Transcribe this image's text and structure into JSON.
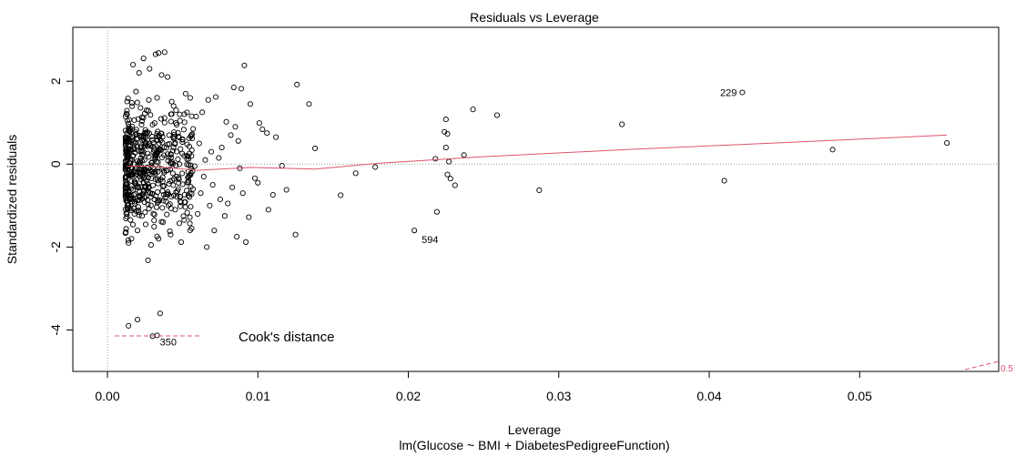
{
  "chart_data": {
    "type": "scatter",
    "title": "Residuals vs Leverage",
    "xlabel": "Leverage",
    "sublabel": "lm(Glucose ~ BMI + DiabetesPedigreeFunction)",
    "ylabel": "Standardized residuals",
    "xlim": [
      0,
      0.057
    ],
    "ylim": [
      -5.0,
      3.3
    ],
    "xticks": [
      "0.00",
      "0.01",
      "0.02",
      "0.03",
      "0.04",
      "0.05"
    ],
    "xtick_values": [
      0,
      0.01,
      0.02,
      0.03,
      0.04,
      0.05
    ],
    "yticks": [
      "-4",
      "-2",
      "0",
      "2"
    ],
    "ytick_values": [
      -4,
      -2,
      0,
      2
    ],
    "labeled_points": [
      {
        "label": "229",
        "x": 0.0422,
        "y": 1.73
      },
      {
        "label": "594",
        "x": 0.0204,
        "y": -1.6
      },
      {
        "label": "350",
        "x": 0.003,
        "y": -4.15
      }
    ],
    "points": [
      [
        0.0558,
        0.51
      ],
      [
        0.0482,
        0.35
      ],
      [
        0.041,
        -0.4
      ],
      [
        0.0422,
        1.73
      ],
      [
        0.0342,
        0.96
      ],
      [
        0.0287,
        -0.63
      ],
      [
        0.0259,
        1.18
      ],
      [
        0.0243,
        1.32
      ],
      [
        0.0237,
        0.22
      ],
      [
        0.0231,
        -0.51
      ],
      [
        0.0228,
        -0.35
      ],
      [
        0.0226,
        -0.25
      ],
      [
        0.0226,
        0.73
      ],
      [
        0.0225,
        0.4
      ],
      [
        0.0224,
        0.78
      ],
      [
        0.0225,
        1.08
      ],
      [
        0.0227,
        0.06
      ],
      [
        0.0219,
        -1.15
      ],
      [
        0.0218,
        0.13
      ],
      [
        0.0204,
        -1.6
      ],
      [
        0.0178,
        -0.07
      ],
      [
        0.0165,
        -0.22
      ],
      [
        0.0155,
        -0.75
      ],
      [
        0.0138,
        0.38
      ],
      [
        0.0134,
        1.45
      ],
      [
        0.0126,
        1.92
      ],
      [
        0.0125,
        -1.7
      ],
      [
        0.0119,
        -0.62
      ],
      [
        0.0116,
        -0.04
      ],
      [
        0.0112,
        0.65
      ],
      [
        0.011,
        -0.74
      ],
      [
        0.0107,
        -1.1
      ],
      [
        0.0106,
        0.75
      ],
      [
        0.0103,
        0.84
      ],
      [
        0.0101,
        0.99
      ],
      [
        0.01,
        -0.45
      ],
      [
        0.0098,
        -0.34
      ],
      [
        0.0095,
        1.45
      ],
      [
        0.0094,
        -1.28
      ],
      [
        0.0092,
        -1.88
      ],
      [
        0.0091,
        2.38
      ],
      [
        0.009,
        -0.7
      ],
      [
        0.0089,
        1.82
      ],
      [
        0.0088,
        -0.1
      ],
      [
        0.0087,
        0.56
      ],
      [
        0.0086,
        -1.75
      ],
      [
        0.0085,
        0.9
      ],
      [
        0.0084,
        1.85
      ],
      [
        0.0083,
        -0.56
      ],
      [
        0.0082,
        0.7
      ],
      [
        0.008,
        -0.95
      ],
      [
        0.0079,
        1.02
      ],
      [
        0.0078,
        -1.25
      ],
      [
        0.0076,
        0.4
      ],
      [
        0.0075,
        -0.85
      ],
      [
        0.0074,
        0.15
      ],
      [
        0.0072,
        1.62
      ],
      [
        0.0071,
        -1.6
      ],
      [
        0.007,
        -0.5
      ],
      [
        0.0069,
        0.3
      ],
      [
        0.0068,
        -1.0
      ],
      [
        0.0067,
        1.55
      ],
      [
        0.0066,
        -2.0
      ],
      [
        0.0065,
        0.1
      ],
      [
        0.0064,
        -0.3
      ],
      [
        0.0063,
        1.25
      ],
      [
        0.0062,
        -0.7
      ],
      [
        0.0061,
        0.5
      ],
      [
        0.006,
        -1.2
      ],
      [
        0.0059,
        1.15
      ],
      [
        0.0058,
        -0.05
      ],
      [
        0.0057,
        0.85
      ],
      [
        0.0056,
        -1.55
      ],
      [
        0.0055,
        1.6
      ],
      [
        0.0054,
        -0.4
      ],
      [
        0.0053,
        0.2
      ],
      [
        0.0052,
        1.7
      ],
      [
        0.0051,
        -1.35
      ],
      [
        0.005,
        0.6
      ],
      [
        0.0049,
        -1.88
      ],
      [
        0.0048,
        1.2
      ],
      [
        0.0047,
        -0.6
      ],
      [
        0.0046,
        0.95
      ],
      [
        0.0045,
        -1.1
      ],
      [
        0.0044,
        1.4
      ],
      [
        0.0043,
        0.05
      ],
      [
        0.0042,
        -1.7
      ],
      [
        0.0041,
        0.7
      ],
      [
        0.004,
        2.1
      ],
      [
        0.0039,
        -0.9
      ],
      [
        0.0038,
        1.0
      ],
      [
        0.0037,
        -1.4
      ],
      [
        0.0036,
        2.15
      ],
      [
        0.0035,
        0.35
      ],
      [
        0.0034,
        -1.8
      ],
      [
        0.0033,
        1.6
      ],
      [
        0.0032,
        2.65
      ],
      [
        0.0031,
        -0.2
      ],
      [
        0.003,
        0.95
      ],
      [
        0.0029,
        -1.95
      ],
      [
        0.0028,
        2.3
      ],
      [
        0.0027,
        -2.32
      ],
      [
        0.0026,
        1.3
      ],
      [
        0.0025,
        -0.8
      ],
      [
        0.0024,
        2.55
      ],
      [
        0.0023,
        -1.25
      ],
      [
        0.0022,
        0.4
      ],
      [
        0.0021,
        2.2
      ],
      [
        0.002,
        -1.6
      ],
      [
        0.0019,
        1.75
      ],
      [
        0.0018,
        -0.45
      ],
      [
        0.0017,
        2.4
      ],
      [
        0.0016,
        -1.8
      ],
      [
        0.0015,
        0.8
      ],
      [
        0.0014,
        -1.9
      ],
      [
        0.0038,
        2.7
      ],
      [
        0.0034,
        2.68
      ],
      [
        0.0013,
        1.2
      ],
      [
        0.0013,
        -0.6
      ],
      [
        0.0014,
        -3.9
      ],
      [
        0.002,
        -3.75
      ],
      [
        0.0035,
        -3.6
      ],
      [
        0.003,
        -4.15
      ],
      [
        0.0033,
        -4.13
      ]
    ]
  }
}
